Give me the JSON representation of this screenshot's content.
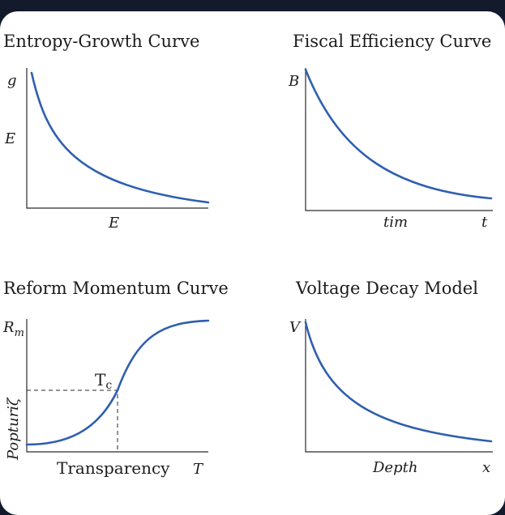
{
  "panels": [
    {
      "title": "Entropy-Growth Curve",
      "y_top_label": "g",
      "y_mid_label": "E",
      "x_label": "E",
      "x_end_label": ""
    },
    {
      "title": "Fiscal Efficiency Curve",
      "y_top_label": "B",
      "y_mid_label": "",
      "x_label": "tim",
      "x_end_label": "t"
    },
    {
      "title": "Reform Momentum Curve",
      "y_top_label": "R",
      "y_top_sub": "m",
      "y_side_label": "Popturiζ",
      "point_label": "T",
      "point_sub": "c",
      "x_label": "Transparency",
      "x_end_label": "T"
    },
    {
      "title": "Voltage Decay Model",
      "y_top_label": "V",
      "y_mid_label": "",
      "x_label": "Depth",
      "x_end_label": "x"
    }
  ],
  "colors": {
    "curve": "#2f5fae",
    "background": "#121a2b",
    "card": "#ffffff"
  }
}
